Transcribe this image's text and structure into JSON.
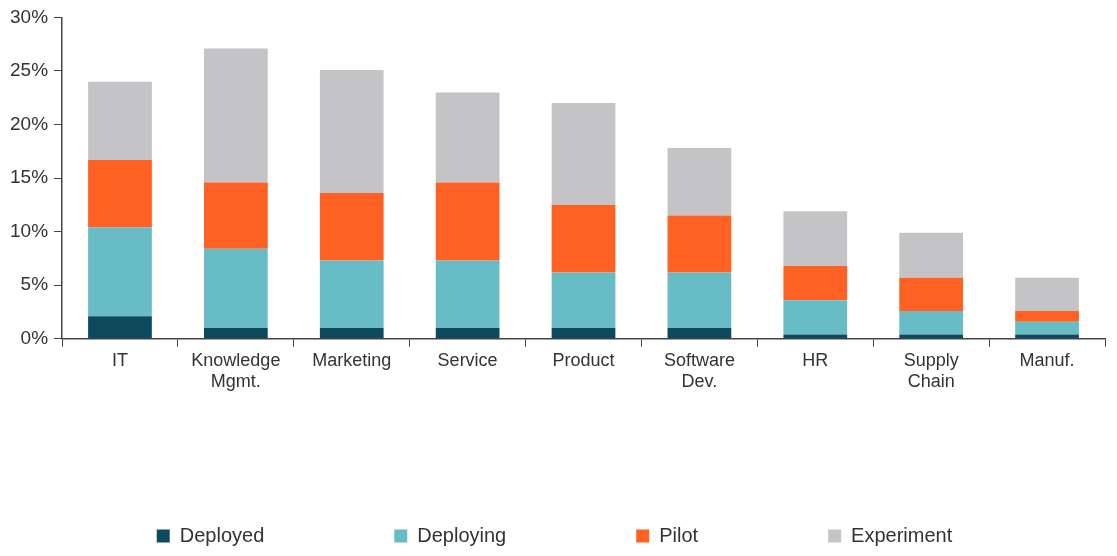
{
  "chart_data": {
    "type": "bar",
    "stacked": true,
    "legend": "bottom",
    "categories": [
      "IT",
      "Knowledge Mgmt.",
      "Marketing",
      "Service",
      "Product",
      "Software Dev.",
      "HR",
      "Supply Chain",
      "Manuf."
    ],
    "ylim": [
      0,
      30
    ],
    "yticks": [
      {
        "value": 0,
        "label": "0%"
      },
      {
        "value": 5,
        "label": "5%"
      },
      {
        "value": 10,
        "label": "10%"
      },
      {
        "value": 15,
        "label": "15%"
      },
      {
        "value": 20,
        "label": "20%"
      },
      {
        "value": 25,
        "label": "25%"
      },
      {
        "value": 30,
        "label": "30%"
      }
    ],
    "series": [
      {
        "name": "Deployed",
        "color": "#0d4a5e",
        "values": [
          2.1,
          1.0,
          1.0,
          1.0,
          1.0,
          1.0,
          0.4,
          0.4,
          0.4
        ]
      },
      {
        "name": "Deploying",
        "color": "#68bcc6",
        "values": [
          8.3,
          7.4,
          6.3,
          6.3,
          5.2,
          5.2,
          3.2,
          2.2,
          1.2
        ]
      },
      {
        "name": "Pilot",
        "color": "#ff6122",
        "values": [
          6.3,
          6.2,
          6.3,
          7.3,
          6.3,
          5.3,
          3.2,
          3.1,
          1.0
        ]
      },
      {
        "name": "Experiment",
        "color": "#c4c4c6",
        "values": [
          7.3,
          12.5,
          11.5,
          8.4,
          9.5,
          6.3,
          5.1,
          4.2,
          3.1
        ]
      }
    ]
  }
}
